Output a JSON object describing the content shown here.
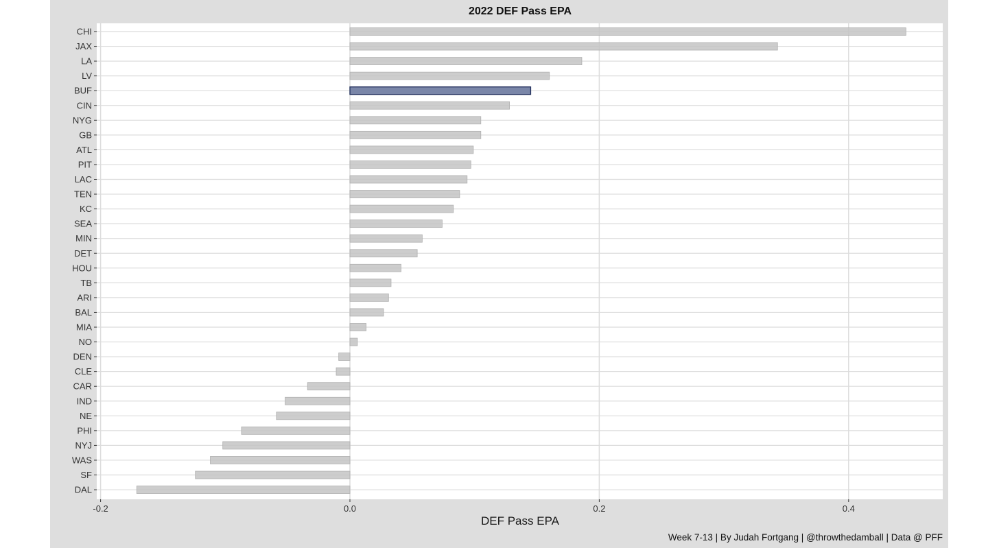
{
  "chart_data": {
    "type": "bar",
    "orientation": "horizontal",
    "title": "2022 DEF Pass EPA",
    "xlabel": "DEF Pass EPA",
    "ylabel": "",
    "caption": "Week 7-13 | By Judah Fortgang | @throwthedamball | Data @ PFF",
    "xlim": [
      -0.2,
      0.48
    ],
    "xticks": [
      -0.2,
      0.0,
      0.2,
      0.4
    ],
    "xtick_labels": [
      "-0.2",
      "0.0",
      "0.2",
      "0.4"
    ],
    "categories": [
      "CHI",
      "JAX",
      "LA",
      "LV",
      "BUF",
      "CIN",
      "NYG",
      "GB",
      "ATL",
      "PIT",
      "LAC",
      "TEN",
      "KC",
      "SEA",
      "MIN",
      "DET",
      "HOU",
      "TB",
      "ARI",
      "BAL",
      "MIA",
      "NO",
      "DEN",
      "CLE",
      "CAR",
      "IND",
      "NE",
      "PHI",
      "NYJ",
      "WAS",
      "SF",
      "DAL"
    ],
    "values": [
      0.446,
      0.343,
      0.186,
      0.16,
      0.145,
      0.128,
      0.105,
      0.105,
      0.099,
      0.097,
      0.094,
      0.088,
      0.083,
      0.074,
      0.058,
      0.054,
      0.041,
      0.033,
      0.031,
      0.027,
      0.013,
      0.006,
      -0.009,
      -0.011,
      -0.034,
      -0.052,
      -0.059,
      -0.087,
      -0.102,
      -0.112,
      -0.124,
      -0.171
    ],
    "highlight": "BUF",
    "colors": {
      "bar": "#c4c4c4",
      "bar_stroke": "#b0b0b0",
      "highlight": "#7a86a8",
      "highlight_stroke": "#1f2d5a",
      "panel": "#ffffff",
      "frame": "#dedede",
      "grid": "#dcdcdc"
    },
    "grid": true
  }
}
